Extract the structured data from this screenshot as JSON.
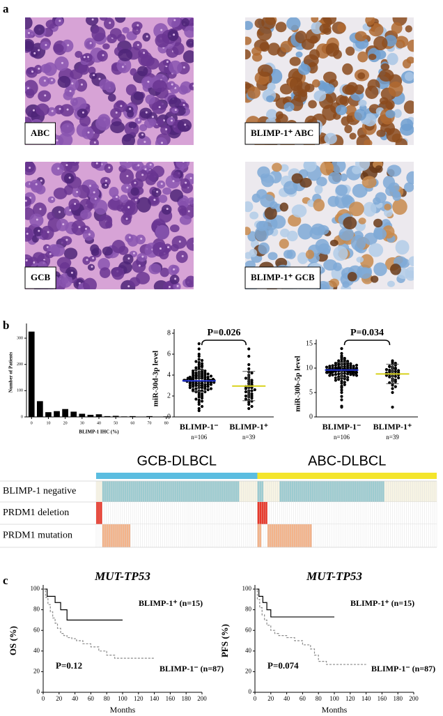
{
  "panels": [
    "a",
    "b",
    "c"
  ],
  "images": [
    {
      "label": "ABC",
      "stain": "he"
    },
    {
      "label": "BLIMP-1⁺ ABC",
      "stain": "ihc-high"
    },
    {
      "label": "GCB",
      "stain": "he"
    },
    {
      "label": "BLIMP-1⁺ GCB",
      "stain": "ihc-low"
    }
  ],
  "chart_data": [
    {
      "type": "bar",
      "ylabel": "Number of Patients",
      "xlabel": "BLIMP-1 IHC (%)",
      "color": "#000000",
      "x": [
        0,
        5,
        10,
        15,
        20,
        25,
        30,
        35,
        40,
        45,
        50,
        55,
        60,
        65,
        70,
        75,
        80
      ],
      "values": [
        325,
        60,
        18,
        22,
        30,
        20,
        12,
        8,
        10,
        3,
        4,
        2,
        3,
        1,
        3,
        1,
        2
      ],
      "xlim": [
        -3,
        83
      ],
      "ylim": [
        0,
        340
      ],
      "xticks": [
        0,
        10,
        20,
        30,
        40,
        50,
        60,
        70,
        80
      ],
      "yticks": [
        0,
        100,
        200,
        300
      ]
    },
    {
      "type": "dot",
      "ylabel": "miR-30d-3p level",
      "categories": [
        "BLIMP-1⁻",
        "BLIMP-1⁺"
      ],
      "category_notes": [
        "n=106",
        "n=39"
      ],
      "values": [
        [
          7.0,
          6.5,
          6.0,
          5.8,
          5.5,
          5.4,
          5.2,
          5.1,
          5.0,
          4.9,
          4.8,
          4.8,
          4.7,
          4.6,
          4.5,
          4.5,
          4.4,
          4.4,
          4.3,
          4.3,
          4.2,
          4.2,
          4.1,
          4.1,
          4.0,
          4.0,
          4.0,
          3.9,
          3.9,
          3.9,
          3.8,
          3.8,
          3.8,
          3.7,
          3.7,
          3.7,
          3.6,
          3.6,
          3.6,
          3.6,
          3.5,
          3.5,
          3.5,
          3.5,
          3.4,
          3.4,
          3.4,
          3.4,
          3.3,
          3.3,
          3.3,
          3.3,
          3.2,
          3.2,
          3.2,
          3.1,
          3.1,
          3.1,
          3.0,
          3.0,
          3.0,
          2.9,
          2.9,
          2.9,
          2.8,
          2.8,
          2.7,
          2.7,
          2.6,
          2.6,
          2.5,
          2.5,
          2.4,
          2.4,
          2.3,
          2.2,
          2.1,
          2.0,
          1.9,
          1.8,
          1.7,
          1.6,
          1.5,
          1.4,
          1.2,
          1.0,
          0.8,
          0.6,
          3.5,
          3.6,
          3.4,
          3.7,
          3.3,
          3.8,
          3.2,
          3.9,
          4.1,
          2.8,
          3.0,
          3.5,
          3.6,
          2.7,
          4.2,
          3.1,
          2.5,
          5.3
        ],
        [
          6.5,
          5.8,
          5.0,
          4.6,
          4.3,
          4.0,
          3.8,
          3.6,
          3.5,
          3.4,
          3.3,
          3.2,
          3.1,
          3.0,
          3.0,
          2.9,
          2.8,
          2.8,
          2.7,
          2.6,
          2.5,
          2.5,
          2.4,
          2.3,
          2.2,
          2.1,
          2.0,
          2.0,
          1.9,
          1.8,
          1.7,
          1.6,
          1.5,
          1.4,
          1.2,
          1.0,
          0.8,
          3.7,
          4.2
        ]
      ],
      "means": [
        3.45,
        2.95
      ],
      "sd": [
        1.05,
        1.4
      ],
      "mean_colors": [
        "#2436d8",
        "#d8d21c"
      ],
      "ylim": [
        0,
        8
      ],
      "yticks": [
        0,
        2,
        4,
        6,
        8
      ],
      "annotation": "P=0.026"
    },
    {
      "type": "dot",
      "ylabel": "miR-30b-5p level",
      "categories": [
        "BLIMP-1⁻",
        "BLIMP-1⁺"
      ],
      "category_notes": [
        "n=106",
        "n=39"
      ],
      "values": [
        [
          14.0,
          13.0,
          12.5,
          12.2,
          12.0,
          11.8,
          11.6,
          11.5,
          11.4,
          11.3,
          11.2,
          11.1,
          11.0,
          11.0,
          10.9,
          10.8,
          10.8,
          10.7,
          10.6,
          10.6,
          10.5,
          10.5,
          10.4,
          10.4,
          10.3,
          10.3,
          10.2,
          10.2,
          10.1,
          10.1,
          10.0,
          10.0,
          10.0,
          9.9,
          9.9,
          9.9,
          9.8,
          9.8,
          9.8,
          9.7,
          9.7,
          9.7,
          9.6,
          9.6,
          9.6,
          9.6,
          9.5,
          9.5,
          9.5,
          9.5,
          9.4,
          9.4,
          9.4,
          9.3,
          9.3,
          9.3,
          9.2,
          9.2,
          9.2,
          9.1,
          9.1,
          9.1,
          9.0,
          9.0,
          9.0,
          8.9,
          8.9,
          8.8,
          8.8,
          8.7,
          8.7,
          8.6,
          8.6,
          8.5,
          8.5,
          8.4,
          8.3,
          8.2,
          8.1,
          8.0,
          7.9,
          7.8,
          7.7,
          7.6,
          7.5,
          7.3,
          7.1,
          6.9,
          6.6,
          6.3,
          6.0,
          5.5,
          5.0,
          4.2,
          3.5,
          2.2,
          2.0,
          10.0,
          9.8,
          9.6,
          9.4,
          10.2,
          9.9,
          10.6,
          9.2,
          9.7
        ],
        [
          11.5,
          11.2,
          11.0,
          10.8,
          10.6,
          10.4,
          10.2,
          10.0,
          9.9,
          9.8,
          9.6,
          9.5,
          9.4,
          9.3,
          9.2,
          9.1,
          9.0,
          8.9,
          8.8,
          8.7,
          8.6,
          8.5,
          8.4,
          8.3,
          8.2,
          8.0,
          7.8,
          7.6,
          7.4,
          7.2,
          7.0,
          6.8,
          6.5,
          6.2,
          5.8,
          5.0,
          2.0,
          9.7,
          10.3
        ]
      ],
      "means": [
        9.6,
        8.8
      ],
      "sd": [
        1.6,
        2.0
      ],
      "mean_colors": [
        "#2436d8",
        "#d8d21c"
      ],
      "ylim": [
        0,
        15
      ],
      "yticks": [
        0,
        5,
        10,
        15
      ],
      "annotation": "P=0.034"
    },
    {
      "type": "heatmap",
      "groups": [
        {
          "name": "GCB-DLBCL",
          "color": "#5bbde0",
          "label_color": "#3cb4dc",
          "columns": 80
        },
        {
          "name": "ABC-DLBCL",
          "color": "#f4e52c",
          "label_color": "#f2a86a",
          "columns": 89
        }
      ],
      "rows": [
        {
          "label": "BLIMP-1 negative",
          "label_color": "#4a74b0",
          "color": "#9ccbd0",
          "background": "#f7f4e4",
          "spans": [
            [
              0,
              3,
              71
            ],
            [
              1,
              0,
              3
            ],
            [
              1,
              11,
              63
            ]
          ]
        },
        {
          "label": "PRDM1 deletion",
          "label_color": "#d42a1e",
          "color": "#e8382a",
          "background": "#ffffff",
          "spans": [
            [
              0,
              0,
              3
            ],
            [
              1,
              0,
              5
            ]
          ]
        },
        {
          "label": "PRDM1 mutation",
          "label_color": "#e8603a",
          "color": "#f3b38a",
          "background": "#ffffff",
          "spans": [
            [
              0,
              3,
              17
            ],
            [
              1,
              0,
              2
            ],
            [
              1,
              5,
              27
            ]
          ]
        }
      ]
    },
    {
      "type": "line",
      "step": true,
      "title": "MUT-TP53",
      "ylabel": "OS (%)",
      "xlabel": "Months",
      "xlim": [
        0,
        200
      ],
      "ylim": [
        0,
        100
      ],
      "xticks": [
        0,
        20,
        40,
        60,
        80,
        100,
        120,
        140,
        160,
        180,
        200
      ],
      "yticks": [
        0,
        20,
        40,
        60,
        80,
        100
      ],
      "series": [
        {
          "name": "BLIMP-1⁺ (n=15)",
          "color": "#000000",
          "dashed": false,
          "x": [
            0,
            5,
            15,
            22,
            30,
            100
          ],
          "values": [
            100,
            93,
            87,
            80,
            70,
            70
          ]
        },
        {
          "name": "BLIMP-1⁻ (n=87)",
          "color": "#8a8a8a",
          "dashed": true,
          "x": [
            0,
            3,
            6,
            9,
            12,
            15,
            18,
            22,
            26,
            30,
            36,
            42,
            50,
            60,
            70,
            80,
            90,
            100,
            140
          ],
          "values": [
            100,
            92,
            85,
            78,
            72,
            67,
            62,
            57,
            55,
            53,
            52,
            50,
            47,
            44,
            40,
            36,
            33,
            33,
            33
          ]
        }
      ],
      "annotation": "P=0.12"
    },
    {
      "type": "line",
      "step": true,
      "title": "MUT-TP53",
      "ylabel": "PFS (%)",
      "xlabel": "Months",
      "xlim": [
        0,
        200
      ],
      "ylim": [
        0,
        100
      ],
      "xticks": [
        0,
        20,
        40,
        60,
        80,
        100,
        120,
        140,
        160,
        180,
        200
      ],
      "yticks": [
        0,
        20,
        40,
        60,
        80,
        100
      ],
      "series": [
        {
          "name": "BLIMP-1⁺ (n=15)",
          "color": "#000000",
          "dashed": false,
          "x": [
            0,
            5,
            10,
            15,
            20,
            100
          ],
          "values": [
            100,
            93,
            87,
            80,
            73,
            73
          ]
        },
        {
          "name": "BLIMP-1⁻ (n=87)",
          "color": "#8a8a8a",
          "dashed": true,
          "x": [
            0,
            3,
            6,
            9,
            12,
            15,
            20,
            25,
            30,
            40,
            50,
            60,
            70,
            75,
            80,
            90,
            140
          ],
          "values": [
            100,
            90,
            82,
            75,
            70,
            65,
            60,
            57,
            55,
            53,
            50,
            46,
            42,
            36,
            30,
            27,
            27
          ]
        }
      ],
      "annotation": "P=0.074"
    }
  ]
}
